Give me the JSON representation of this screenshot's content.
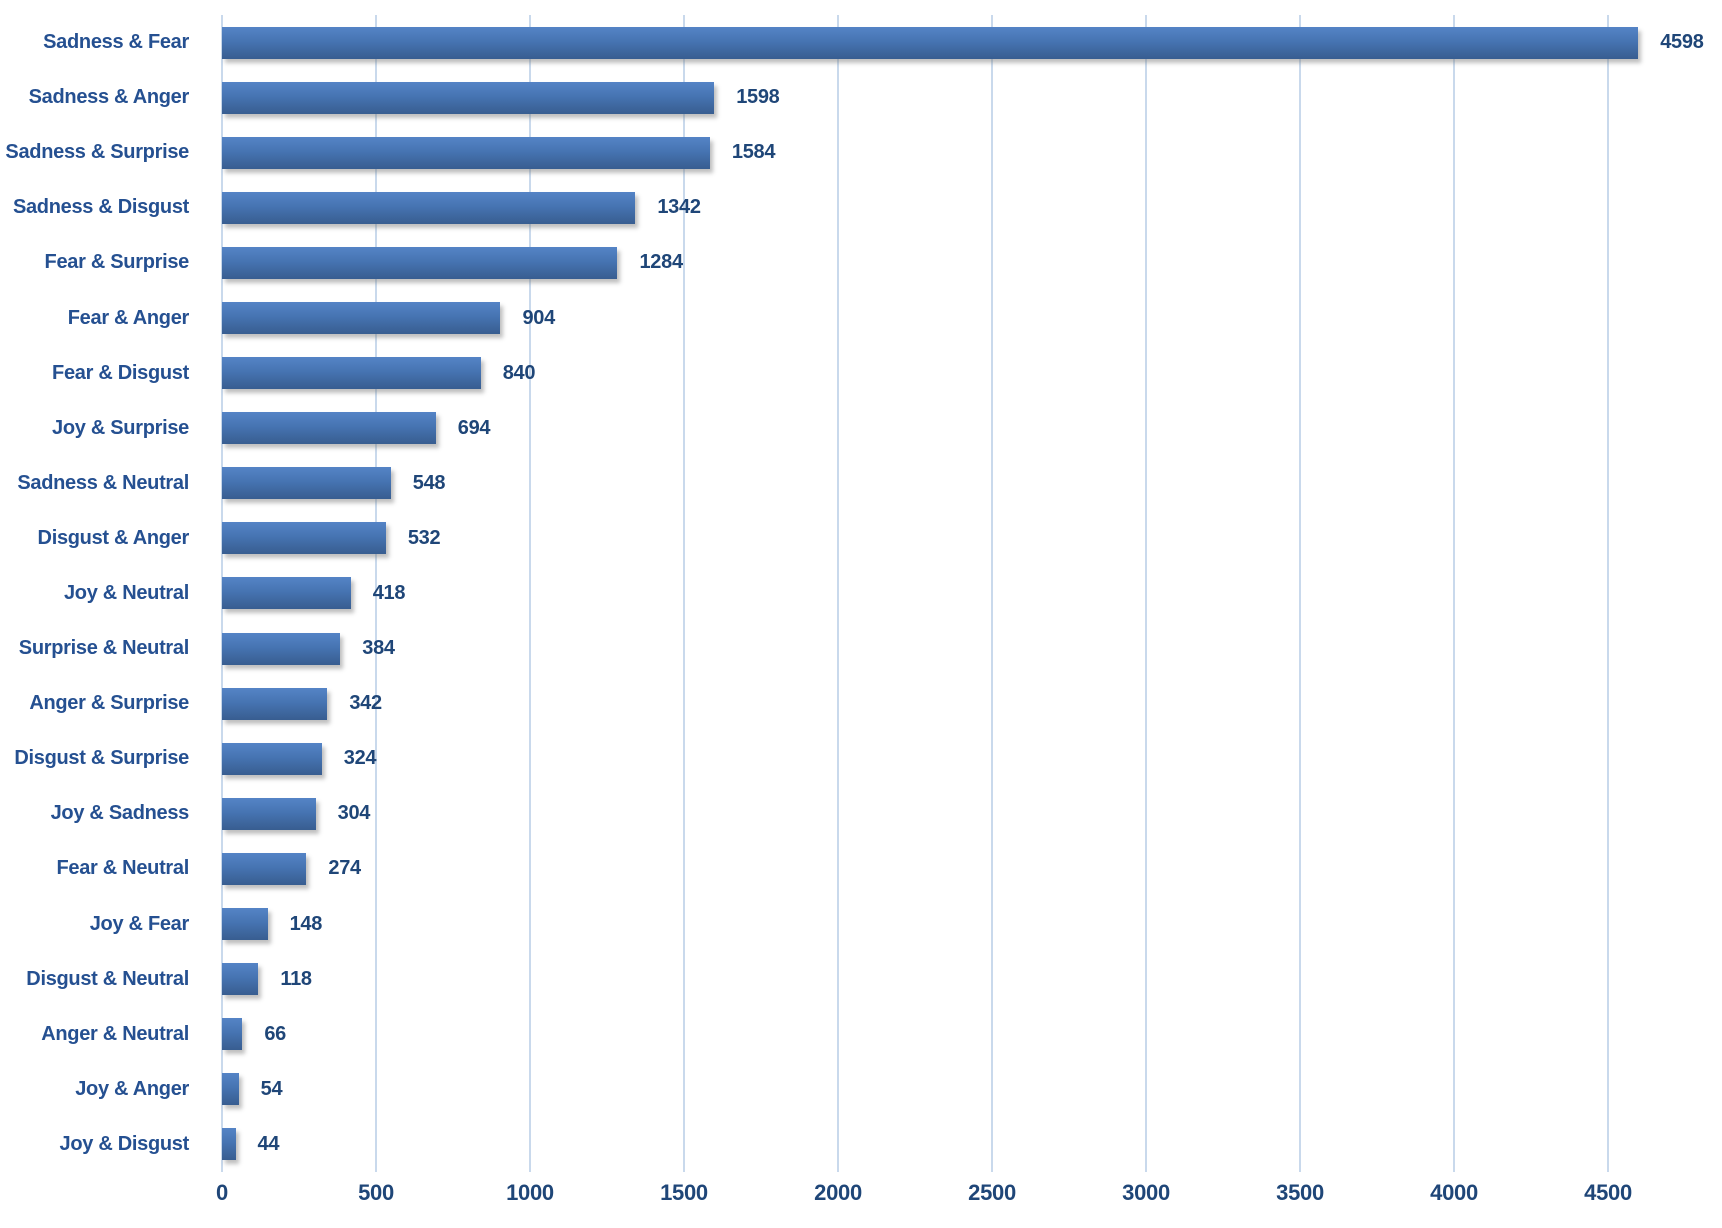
{
  "chart_data": {
    "type": "bar",
    "orientation": "horizontal",
    "title": "",
    "xlabel": "",
    "ylabel": "",
    "categories": [
      "Sadness & Fear",
      "Sadness & Anger",
      "Sadness & Surprise",
      "Sadness & Disgust",
      "Fear & Surprise",
      "Fear & Anger",
      "Fear & Disgust",
      "Joy & Surprise",
      "Sadness & Neutral",
      "Disgust & Anger",
      "Joy & Neutral",
      "Surprise & Neutral",
      "Anger & Surprise",
      "Disgust & Surprise",
      "Joy & Sadness",
      "Fear & Neutral",
      "Joy & Fear",
      "Disgust & Neutral",
      "Anger & Neutral",
      "Joy & Anger",
      "Joy & Disgust"
    ],
    "values": [
      4598,
      1598,
      1584,
      1342,
      1284,
      904,
      840,
      694,
      548,
      532,
      418,
      384,
      342,
      324,
      304,
      274,
      148,
      118,
      66,
      54,
      44
    ],
    "x_ticks": [
      0,
      500,
      1000,
      1500,
      2000,
      2500,
      3000,
      3500,
      4000,
      4500
    ],
    "xlim": [
      0,
      4870
    ],
    "grid": true,
    "legend": "none",
    "colors": {
      "bar_gradient_top": "#5584C6",
      "bar_gradient_mid": "#4674B2",
      "bar_gradient_bottom": "#385D90",
      "gridline": "#C9D9EC",
      "category_label": "#255091",
      "value_label": "#1F4678",
      "tick_label": "#1F4678",
      "background": "#FFFFFF"
    }
  }
}
